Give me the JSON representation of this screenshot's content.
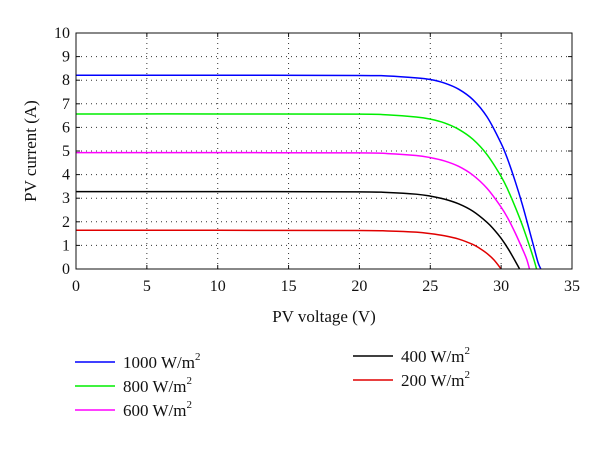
{
  "chart_data": {
    "type": "line",
    "title": "",
    "xlabel": "PV voltage (V)",
    "ylabel": "PV current (A)",
    "xlim": [
      0,
      35
    ],
    "ylim": [
      0,
      10
    ],
    "xticks": [
      0,
      5,
      10,
      15,
      20,
      25,
      30,
      35
    ],
    "yticks": [
      0,
      1,
      2,
      3,
      4,
      5,
      6,
      7,
      8,
      9,
      10
    ],
    "grid": true,
    "grid_style": "dotted",
    "legend_position": "bottom",
    "series": [
      {
        "name": "1000 W/m2",
        "label_main": "1000 W/m",
        "label_sup": "2",
        "color": "#0000ff",
        "x": [
          0,
          10,
          20,
          22,
          24,
          25,
          26,
          27,
          28,
          29,
          30,
          30.5,
          31,
          31.5,
          32,
          32.3,
          32.6,
          32.8
        ],
        "y": [
          8.21,
          8.21,
          8.2,
          8.18,
          8.1,
          8.03,
          7.88,
          7.62,
          7.18,
          6.45,
          5.32,
          4.58,
          3.7,
          2.72,
          1.62,
          0.95,
          0.28,
          0
        ]
      },
      {
        "name": "800 W/m2",
        "label_main": "800 W/m",
        "label_sup": "2",
        "color": "#00ee00",
        "x": [
          0,
          10,
          20,
          22,
          24,
          25,
          26,
          27,
          28,
          29,
          30,
          30.5,
          31,
          31.5,
          32,
          32.3,
          32.5
        ],
        "y": [
          6.57,
          6.57,
          6.56,
          6.53,
          6.44,
          6.35,
          6.19,
          5.92,
          5.5,
          4.85,
          3.92,
          3.32,
          2.62,
          1.85,
          0.98,
          0.42,
          0
        ]
      },
      {
        "name": "600 W/m2",
        "label_main": "600 W/m",
        "label_sup": "2",
        "color": "#ff00ff",
        "x": [
          0,
          10,
          20,
          22,
          24,
          25,
          26,
          27,
          28,
          29,
          30,
          30.5,
          31,
          31.5,
          31.8,
          32
        ],
        "y": [
          4.93,
          4.93,
          4.92,
          4.89,
          4.81,
          4.72,
          4.58,
          4.35,
          3.98,
          3.42,
          2.62,
          2.12,
          1.52,
          0.85,
          0.42,
          0
        ]
      },
      {
        "name": "400 W/m2",
        "label_main": "400 W/m",
        "label_sup": "2",
        "color": "#000000",
        "x": [
          0,
          10,
          20,
          22,
          24,
          25,
          26,
          27,
          28,
          29,
          29.5,
          30,
          30.5,
          31,
          31.3
        ],
        "y": [
          3.28,
          3.28,
          3.27,
          3.24,
          3.17,
          3.09,
          2.96,
          2.76,
          2.45,
          1.98,
          1.67,
          1.3,
          0.85,
          0.33,
          0
        ]
      },
      {
        "name": "200 W/m2",
        "label_main": "200 W/m",
        "label_sup": "2",
        "color": "#e00000",
        "x": [
          0,
          10,
          20,
          22,
          24,
          25,
          26,
          27,
          28,
          28.5,
          29,
          29.5,
          30
        ],
        "y": [
          1.64,
          1.64,
          1.63,
          1.61,
          1.56,
          1.5,
          1.41,
          1.27,
          1.04,
          0.87,
          0.66,
          0.38,
          0
        ]
      }
    ]
  }
}
